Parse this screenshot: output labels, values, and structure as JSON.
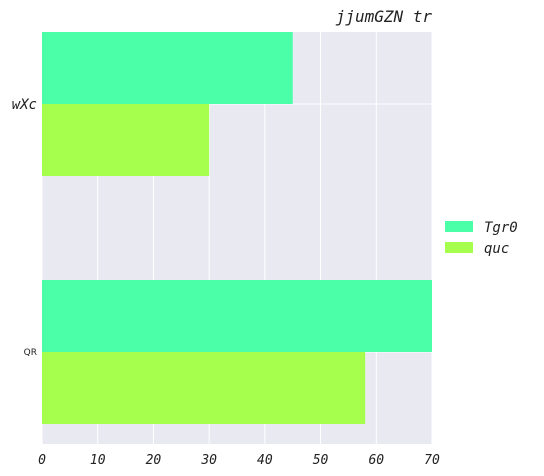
{
  "chart_data": {
    "type": "bar",
    "orientation": "horizontal",
    "title": "jjumGZN tr",
    "categories": [
      "wXc",
      "QR"
    ],
    "series": [
      {
        "name": "Tgr0",
        "values": [
          45,
          70
        ],
        "color": "#4bffa8"
      },
      {
        "name": "quc",
        "values": [
          30,
          58
        ],
        "color": "#a6ff4d"
      }
    ],
    "xlim": [
      0,
      70
    ],
    "xticks": [
      "0",
      "10",
      "20",
      "30",
      "40",
      "50",
      "60",
      "70"
    ],
    "grid": true,
    "legend_position": "right",
    "background": "#e8e9f1"
  }
}
